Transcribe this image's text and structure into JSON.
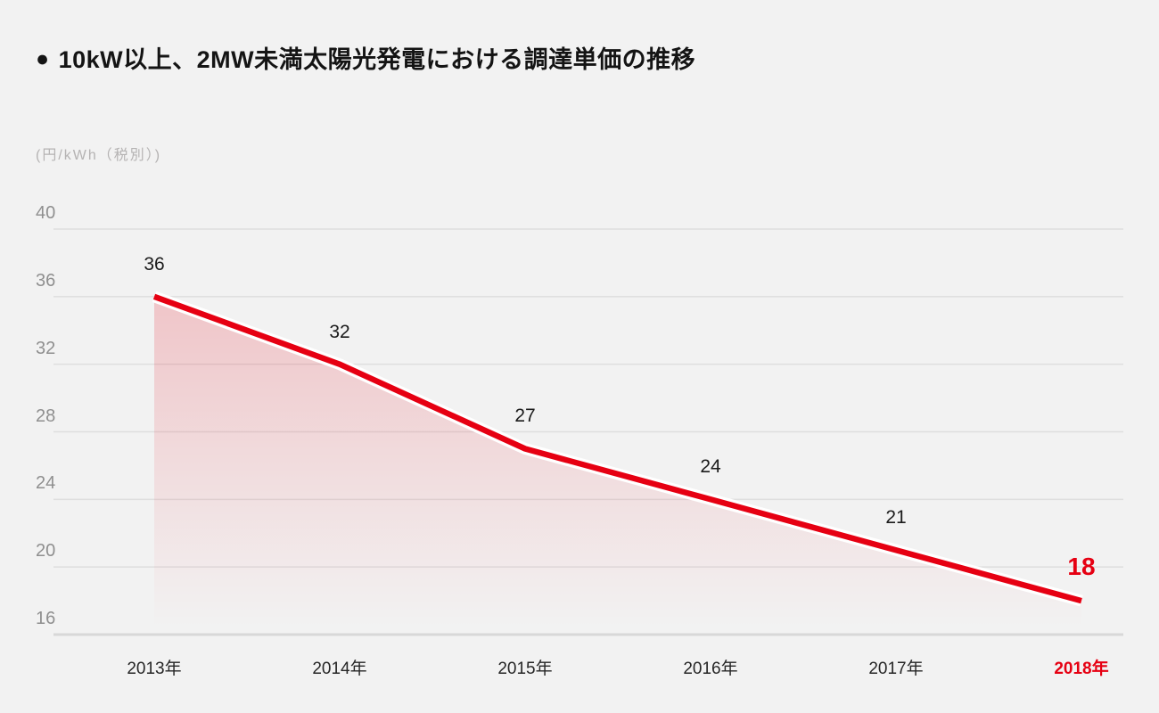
{
  "header": {
    "bullet_icon": "●"
  },
  "chart_data": {
    "type": "area",
    "title": "10kW以上、2MW未満太陽光発電における調達単価の推移",
    "xlabel": "",
    "ylabel": "(円/kWh（税別）)",
    "categories": [
      "2013年",
      "2014年",
      "2015年",
      "2016年",
      "2017年",
      "2018年"
    ],
    "values": [
      36,
      32,
      27,
      24,
      21,
      18
    ],
    "highlight_index": 5,
    "y_ticks": [
      40,
      36,
      32,
      28,
      24,
      20,
      16
    ],
    "ylim": [
      16,
      40
    ],
    "grid": true,
    "legend": "none",
    "colors": {
      "background": "#f2f2f2",
      "line": "#e60012",
      "line_halo": "#ffffff",
      "area_top": "rgba(230,0,18,0.19)",
      "area_bottom": "rgba(230,0,18,0)",
      "grid_line": "#dedede",
      "axis_line": "#d8d8d8",
      "tick_text": "#8f8f8f",
      "category_text": "#262626",
      "value_text": "#1b1b1b",
      "highlight": "#e60012",
      "title_text": "#141414",
      "unit_text": "#b5b3b3"
    }
  }
}
